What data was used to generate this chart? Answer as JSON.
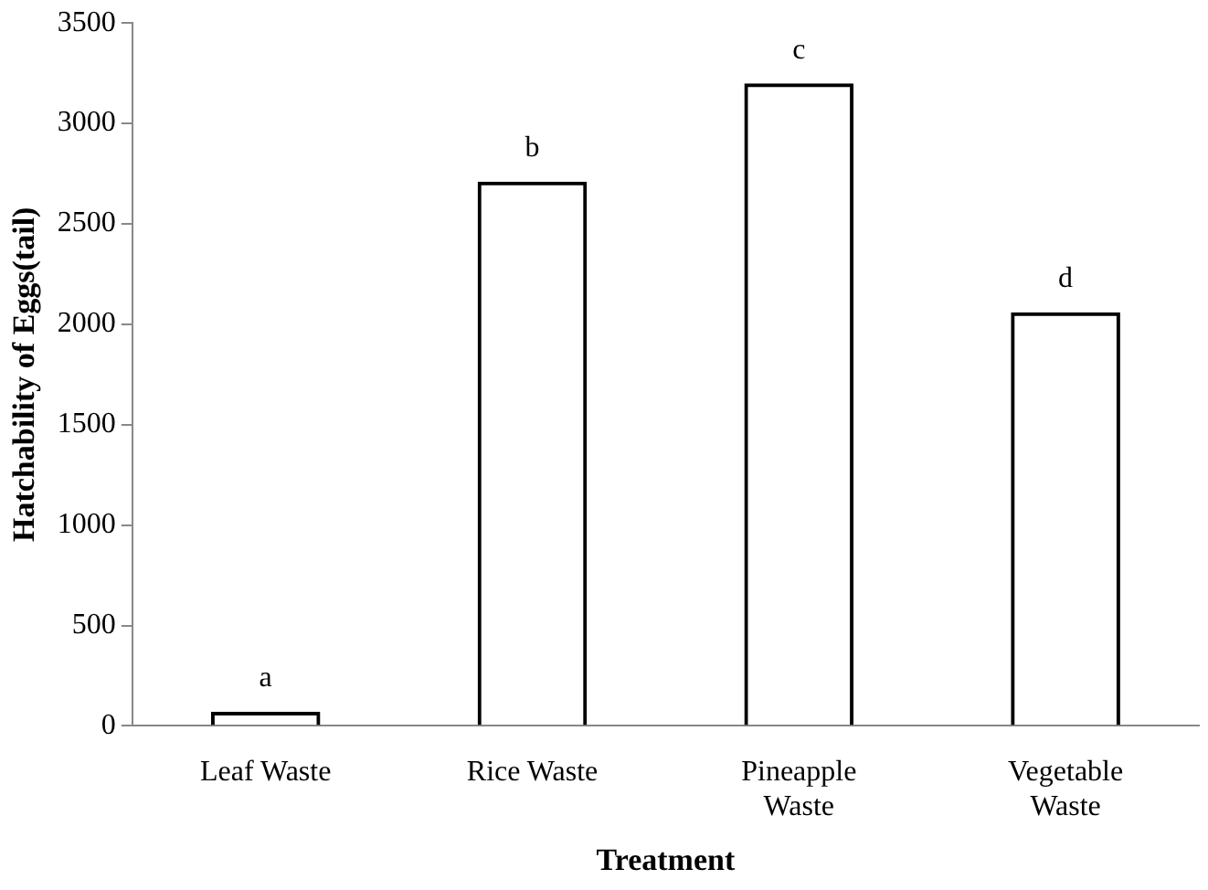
{
  "chart_data": {
    "type": "bar",
    "xlabel": "Treatment",
    "ylabel": "Hatchability of Eggs(tail)",
    "categories": [
      "Leaf Waste",
      "Rice Waste",
      "Pineapple Waste",
      "Vegetable Waste"
    ],
    "values": [
      70,
      2710,
      3200,
      2060
    ],
    "color": "#000000",
    "ylim": [
      0,
      3500
    ],
    "yticks": [
      0,
      500,
      1000,
      1500,
      2000,
      2500,
      3000,
      3500
    ],
    "grid": false,
    "legend": false,
    "annotations": [
      {
        "text": "a",
        "x": "Leaf Waste",
        "y": 70
      },
      {
        "text": "b",
        "x": "Rice Waste",
        "y": 2710
      },
      {
        "text": "c",
        "x": "Pineapple Waste",
        "y": 3200
      },
      {
        "text": "d",
        "x": "Vegetable Waste",
        "y": 2060
      }
    ]
  }
}
